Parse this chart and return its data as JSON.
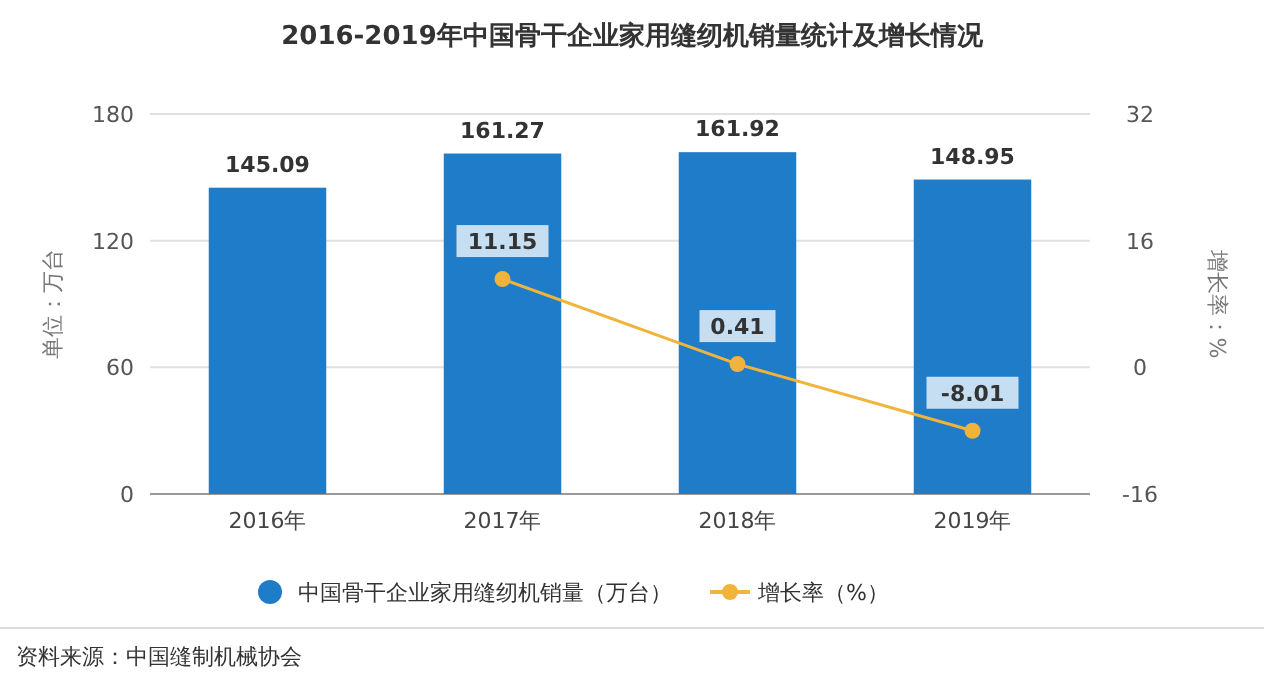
{
  "chart_data": {
    "type": "bar",
    "title": "2016-2019年中国骨干企业家用缝纫机销量统计及增长情况",
    "ylabel": "单位：万台",
    "y2label": "增长率：%",
    "categories": [
      "2016年",
      "2017年",
      "2018年",
      "2019年"
    ],
    "series": [
      {
        "name": "中国骨干企业家用缝纫机销量（万台）",
        "color": "#1e7cc8",
        "values": [
          145.09,
          161.27,
          161.92,
          148.95
        ]
      },
      {
        "name": "增长率（%）",
        "type": "line",
        "axis": "y2",
        "color": "#f0b43c",
        "marker": "circle",
        "values": [
          null,
          11.15,
          0.41,
          -8.01
        ]
      }
    ],
    "ylim": [
      0,
      180
    ],
    "yticks": [
      0,
      60,
      120,
      180
    ],
    "y2lim": [
      -16,
      32
    ],
    "y2ticks": [
      -16,
      0,
      16,
      32
    ],
    "grid": "y",
    "legend": "bottom",
    "data_labels": true,
    "annotations": [
      "资料来源：中国缝制机械协会"
    ]
  }
}
